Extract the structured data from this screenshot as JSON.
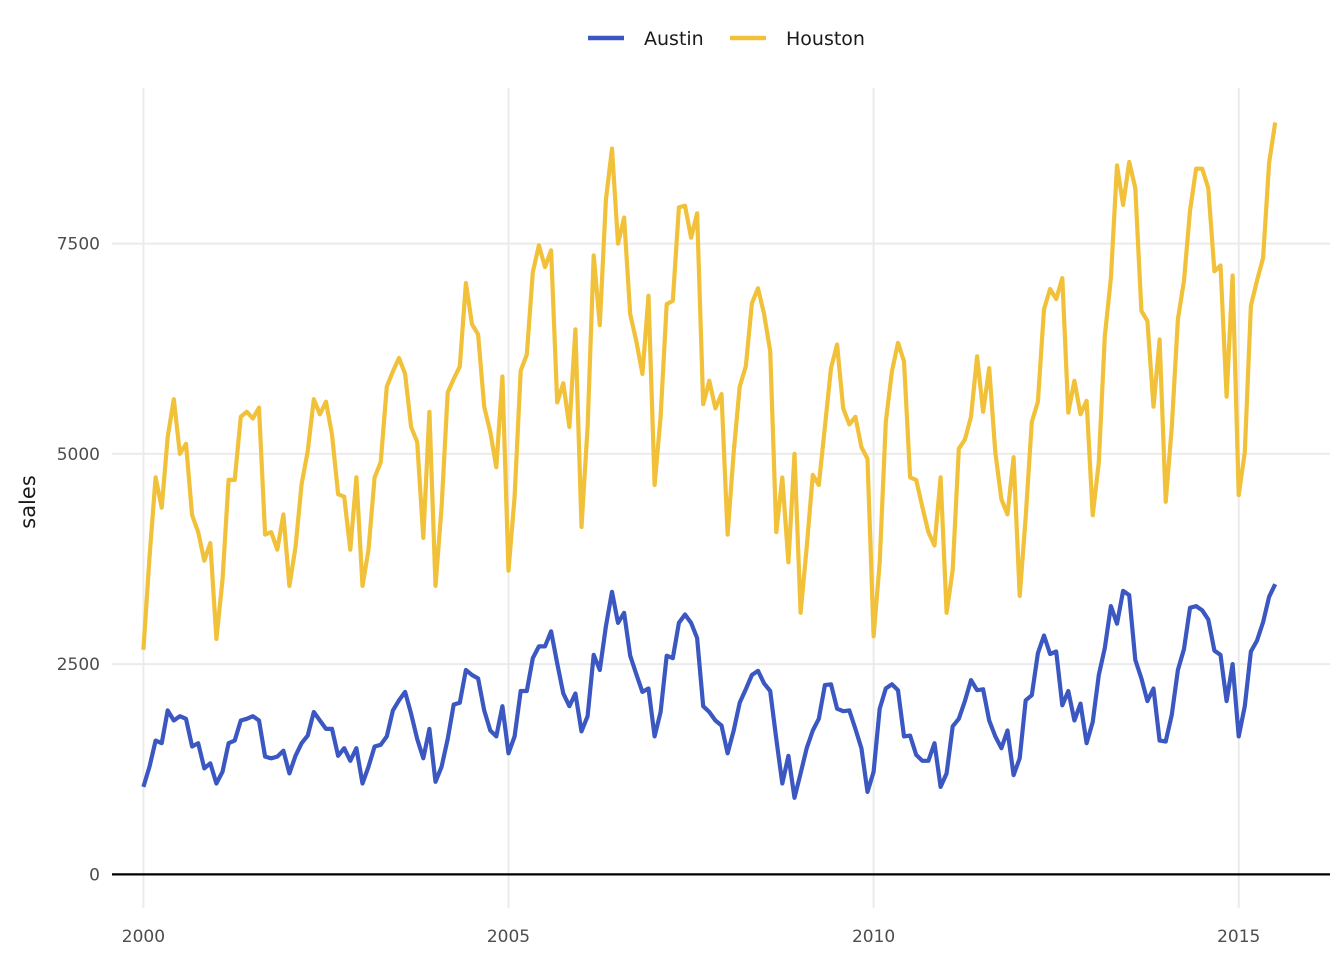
{
  "chart_data": {
    "type": "line",
    "title": "",
    "xlabel": "",
    "ylabel": "sales",
    "xlim": [
      1999.57,
      2016.25
    ],
    "ylim": [
      -400,
      9350
    ],
    "x_start": 2000.0,
    "x_step": 0.0833333,
    "x_ticks": [
      2000,
      2005,
      2010,
      2015
    ],
    "x_tick_labels": [
      "2000",
      "2005",
      "2010",
      "2015"
    ],
    "y_ticks": [
      0,
      2500,
      5000,
      7500
    ],
    "y_tick_labels": [
      "0",
      "2500",
      "5000",
      "7500"
    ],
    "grid": true,
    "zero_line": true,
    "legend": {
      "position": "top",
      "entries": [
        "Austin",
        "Houston"
      ]
    },
    "series": [
      {
        "name": "Austin",
        "color": "#3B57C1",
        "values": [
          1040,
          1280,
          1590,
          1560,
          1950,
          1830,
          1880,
          1850,
          1520,
          1560,
          1260,
          1320,
          1080,
          1220,
          1560,
          1590,
          1830,
          1850,
          1880,
          1830,
          1400,
          1380,
          1400,
          1470,
          1200,
          1410,
          1560,
          1650,
          1930,
          1830,
          1730,
          1730,
          1410,
          1500,
          1350,
          1500,
          1080,
          1280,
          1520,
          1540,
          1640,
          1950,
          2070,
          2170,
          1910,
          1610,
          1380,
          1730,
          1100,
          1280,
          1610,
          2020,
          2040,
          2430,
          2370,
          2330,
          1950,
          1710,
          1640,
          2000,
          1440,
          1640,
          2180,
          2180,
          2570,
          2710,
          2710,
          2890,
          2510,
          2150,
          2000,
          2150,
          1700,
          1880,
          2610,
          2430,
          2950,
          3360,
          2990,
          3110,
          2600,
          2380,
          2170,
          2210,
          1640,
          1930,
          2600,
          2570,
          2990,
          3090,
          2990,
          2810,
          2000,
          1930,
          1830,
          1770,
          1440,
          1710,
          2040,
          2200,
          2370,
          2420,
          2270,
          2180,
          1610,
          1080,
          1410,
          910,
          1200,
          1500,
          1710,
          1850,
          2250,
          2260,
          1970,
          1940,
          1950,
          1730,
          1500,
          980,
          1220,
          1970,
          2210,
          2260,
          2190,
          1640,
          1650,
          1420,
          1350,
          1350,
          1560,
          1040,
          1200,
          1760,
          1850,
          2060,
          2310,
          2190,
          2200,
          1830,
          1640,
          1500,
          1710,
          1180,
          1380,
          2070,
          2130,
          2630,
          2840,
          2620,
          2650,
          2010,
          2180,
          1830,
          2030,
          1560,
          1810,
          2370,
          2690,
          3190,
          2980,
          3370,
          3320,
          2550,
          2330,
          2060,
          2210,
          1590,
          1580,
          1900,
          2430,
          2680,
          3170,
          3190,
          3140,
          3030,
          2660,
          2610,
          2060,
          2500,
          1640,
          2000,
          2650,
          2780,
          3000,
          3300,
          3450
        ]
      },
      {
        "name": "Houston",
        "color": "#F1C13A",
        "values": [
          2670,
          3770,
          4720,
          4360,
          5200,
          5650,
          5000,
          5120,
          4270,
          4070,
          3730,
          3940,
          2800,
          3500,
          4690,
          4690,
          5440,
          5500,
          5420,
          5550,
          4040,
          4070,
          3860,
          4280,
          3430,
          3890,
          4640,
          5030,
          5650,
          5470,
          5620,
          5230,
          4520,
          4490,
          3860,
          4720,
          3430,
          3860,
          4720,
          4900,
          5800,
          5980,
          6140,
          5950,
          5320,
          5140,
          4000,
          5500,
          3430,
          4370,
          5730,
          5890,
          6040,
          7030,
          6540,
          6420,
          5560,
          5260,
          4840,
          5920,
          3610,
          4490,
          5990,
          6180,
          7160,
          7480,
          7220,
          7420,
          5610,
          5840,
          5320,
          6480,
          4130,
          5320,
          7360,
          6530,
          8020,
          8630,
          7500,
          7810,
          6660,
          6340,
          5950,
          6880,
          4630,
          5440,
          6780,
          6820,
          7930,
          7950,
          7570,
          7860,
          5590,
          5870,
          5540,
          5710,
          4040,
          5020,
          5800,
          6040,
          6790,
          6970,
          6660,
          6220,
          4070,
          4720,
          3710,
          5000,
          3110,
          3890,
          4750,
          4630,
          5320,
          6020,
          6300,
          5540,
          5350,
          5440,
          5080,
          4940,
          2830,
          3710,
          5380,
          5980,
          6320,
          6100,
          4720,
          4690,
          4370,
          4070,
          3910,
          4720,
          3110,
          3620,
          5060,
          5170,
          5440,
          6160,
          5500,
          6020,
          5020,
          4460,
          4280,
          4960,
          3310,
          4250,
          5380,
          5620,
          6720,
          6960,
          6840,
          7090,
          5490,
          5870,
          5470,
          5630,
          4270,
          4900,
          6400,
          7090,
          8430,
          7960,
          8470,
          8160,
          6700,
          6580,
          5560,
          6360,
          4430,
          5320,
          6600,
          7060,
          7890,
          8390,
          8390,
          8160,
          7170,
          7240,
          5680,
          7120,
          4510,
          5020,
          6760,
          7060,
          7330,
          8460,
          8940
        ]
      }
    ]
  }
}
